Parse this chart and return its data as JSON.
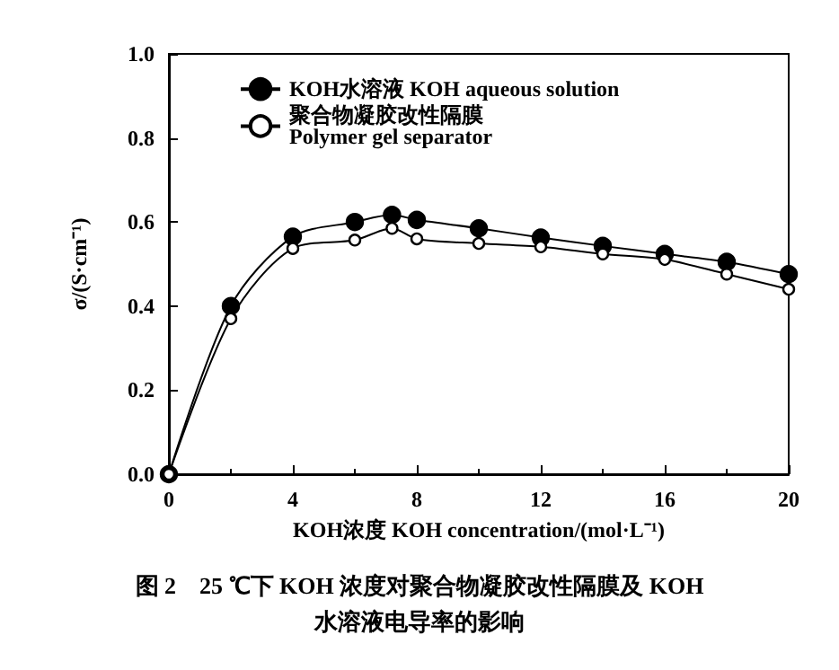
{
  "chart_data": {
    "type": "line",
    "title": "图 2　25 ℃下 KOH 浓度对聚合物凝胶改性隔膜及 KOH\n水溶液电导率的影响",
    "xlabel": "KOH浓度 KOH concentration/(mol·L⁻¹)",
    "ylabel": "σ/(S·cm⁻¹)",
    "x": [
      0,
      2,
      4,
      6,
      7.2,
      8,
      10,
      12,
      14,
      16,
      18,
      20
    ],
    "series": [
      {
        "name": "KOH水溶液 KOH aqueous solution",
        "color": "#000000",
        "marker": "circle",
        "values": [
          0,
          0.4,
          0.565,
          0.6,
          0.617,
          0.605,
          0.585,
          0.563,
          0.543,
          0.524,
          0.505,
          0.476
        ]
      },
      {
        "name": "聚合物凝胶改性隔膜\nPolymer gel separator",
        "color": "#000000",
        "marker": "circle_open",
        "values": [
          0,
          0.37,
          0.537,
          0.557,
          0.585,
          0.56,
          0.549,
          0.541,
          0.524,
          0.511,
          0.476,
          0.44
        ]
      }
    ],
    "xlim": [
      0,
      20
    ],
    "xticks": [
      0,
      4,
      8,
      12,
      16,
      20
    ],
    "ylim": [
      0,
      1
    ],
    "yticks": [
      {
        "value": 0,
        "label": "0.0"
      },
      {
        "value": 0.2,
        "label": "0.2"
      },
      {
        "value": 0.4,
        "label": "0.4"
      },
      {
        "value": 0.6,
        "label": "0.6"
      },
      {
        "value": 0.8,
        "label": "0.8"
      },
      {
        "value": 1,
        "label": "1.0"
      }
    ],
    "legend": "top left",
    "grid": false
  }
}
